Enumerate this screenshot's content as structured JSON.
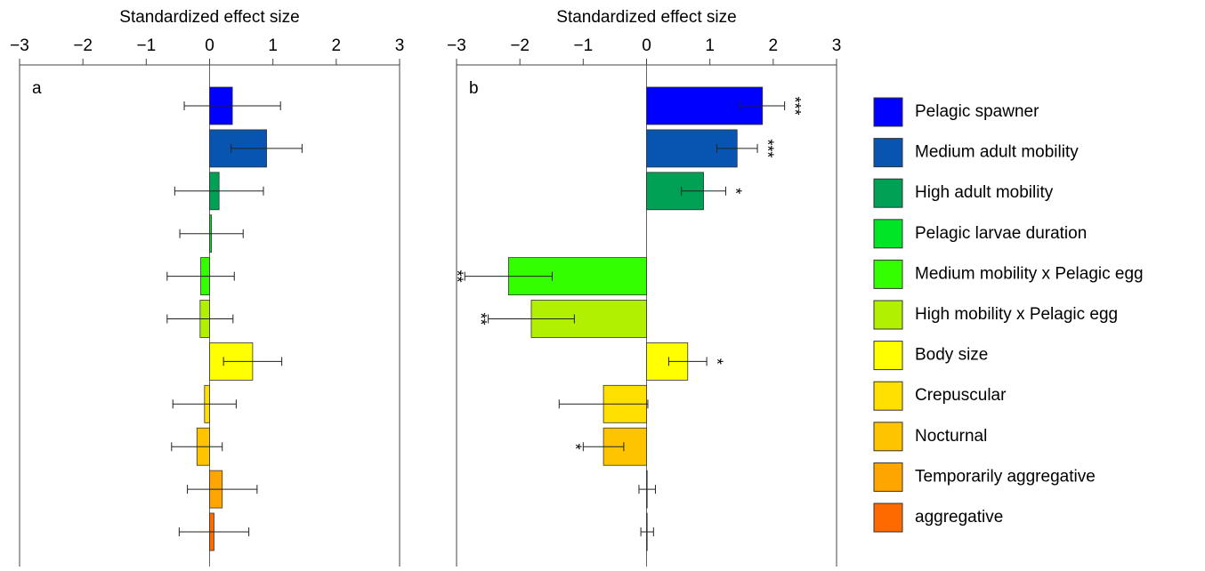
{
  "chart_data": [
    {
      "type": "hbar",
      "panel_label": "a",
      "xlabel": "Standardized effect size",
      "xlim": [
        -3,
        3
      ],
      "xticks": [
        {
          "value": -3,
          "label": "−3"
        },
        {
          "value": -2,
          "label": "−2"
        },
        {
          "value": -1,
          "label": "−1"
        },
        0,
        1,
        2,
        3
      ],
      "values": [
        0.36,
        0.9,
        0.15,
        0.03,
        -0.14,
        -0.15,
        0.68,
        -0.08,
        -0.2,
        0.2,
        0.07
      ],
      "errors": [
        0.76,
        0.56,
        0.7,
        0.5,
        0.53,
        0.52,
        0.46,
        0.5,
        0.4,
        0.55,
        0.55
      ]
    },
    {
      "type": "hbar",
      "panel_label": "b",
      "xlabel": "Standardized effect size",
      "xlim": [
        -3,
        3
      ],
      "xticks": [
        {
          "value": -3,
          "label": "−3"
        },
        {
          "value": -2,
          "label": "−2"
        },
        {
          "value": -1,
          "label": "−1"
        },
        0,
        1,
        2,
        3
      ],
      "values": [
        1.83,
        1.43,
        0.9,
        null,
        -2.18,
        -1.82,
        0.65,
        -0.68,
        -0.68,
        0.01,
        0.01
      ],
      "errors": [
        0.35,
        0.32,
        0.35,
        null,
        0.69,
        0.68,
        0.3,
        0.7,
        0.32,
        0.13,
        0.1
      ],
      "significance": [
        "***",
        "***",
        "*",
        null,
        "**",
        "**",
        "*",
        null,
        "*",
        null,
        null
      ]
    }
  ],
  "legend": {
    "items": [
      {
        "name": "Pelagic spawner",
        "color": "#0000ff"
      },
      {
        "name": "Medium adult mobility",
        "color": "#0755b0"
      },
      {
        "name": "High adult mobility",
        "color": "#00a055"
      },
      {
        "name": "Pelagic larvae duration",
        "color": "#00e626"
      },
      {
        "name": "Medium mobility x Pelagic egg",
        "color": "#33ff00"
      },
      {
        "name": "High mobility x Pelagic egg",
        "color": "#b0f000"
      },
      {
        "name": "Body size",
        "color": "#ffff00"
      },
      {
        "name": "Crepuscular",
        "color": "#ffe000"
      },
      {
        "name": "Nocturnal",
        "color": "#ffc400"
      },
      {
        "name": "Temporarily aggregative",
        "color": "#ffa500"
      },
      {
        "name": "aggregative",
        "color": "#ff6a00"
      }
    ]
  }
}
